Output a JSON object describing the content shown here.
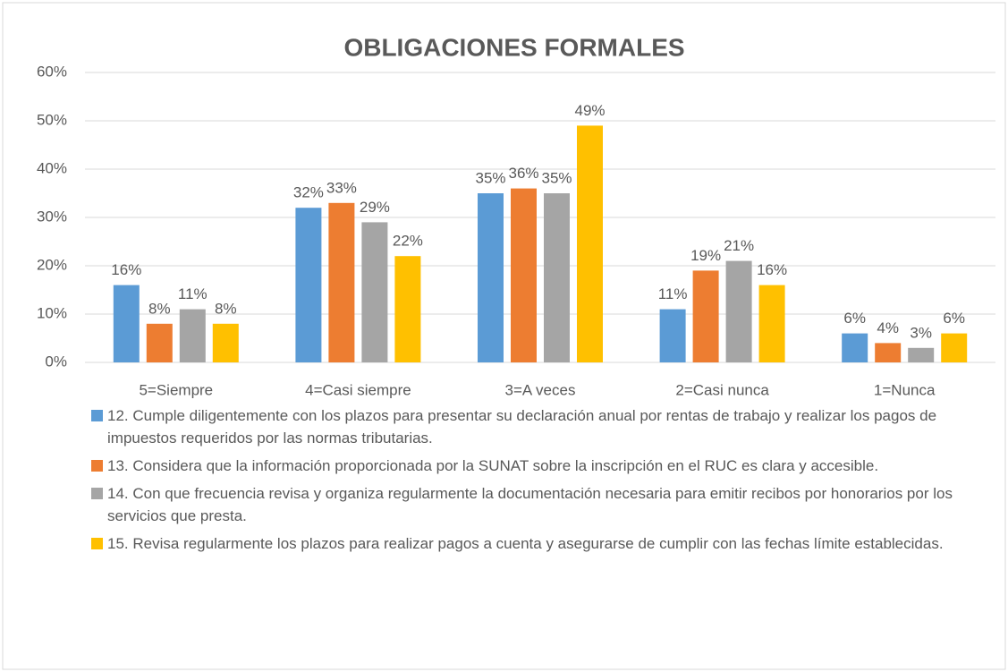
{
  "chart_data": {
    "type": "bar",
    "title": "OBLIGACIONES FORMALES",
    "categories": [
      "5=Siempre",
      "4=Casi siempre",
      "3=A veces",
      "2=Casi nunca",
      "1=Nunca"
    ],
    "series": [
      {
        "name": "12. Cumple diligentemente con los plazos para presentar su declaración anual por rentas de trabajo y realizar los pagos de impuestos requeridos por las normas tributarias.",
        "color": "#5b9bd5",
        "values": [
          16,
          32,
          35,
          11,
          6
        ],
        "value_labels": [
          "16%",
          "32%",
          "35%",
          "11%",
          "6%"
        ]
      },
      {
        "name": "13. Considera que la información proporcionada por la SUNAT sobre la inscripción en el RUC es clara y accesible.",
        "color": "#ed7d31",
        "values": [
          8,
          33,
          36,
          19,
          4
        ],
        "value_labels": [
          "8%",
          "33%",
          "36%",
          "19%",
          "4%"
        ]
      },
      {
        "name": "14. Con que frecuencia revisa y organiza regularmente la documentación necesaria para emitir recibos por honorarios por los servicios que presta.",
        "color": "#a5a5a5",
        "values": [
          11,
          29,
          35,
          21,
          3
        ],
        "value_labels": [
          "11%",
          "29%",
          "35%",
          "21%",
          "3%"
        ]
      },
      {
        "name": "15. Revisa regularmente los plazos para realizar pagos a cuenta y asegurarse de cumplir con las fechas límite establecidas.",
        "color": "#ffc000",
        "values": [
          8,
          22,
          49,
          16,
          6
        ],
        "value_labels": [
          "8%",
          "22%",
          "49%",
          "16%",
          "6%"
        ]
      }
    ],
    "ylim": [
      0,
      60
    ],
    "yticks": [
      {
        "value": 0,
        "label": "0%"
      },
      {
        "value": 10,
        "label": "10%"
      },
      {
        "value": 20,
        "label": "20%"
      },
      {
        "value": 30,
        "label": "30%"
      },
      {
        "value": 40,
        "label": "40%"
      },
      {
        "value": 50,
        "label": "50%"
      },
      {
        "value": 60,
        "label": "60%"
      }
    ],
    "grid": true,
    "legend": "bottom"
  }
}
